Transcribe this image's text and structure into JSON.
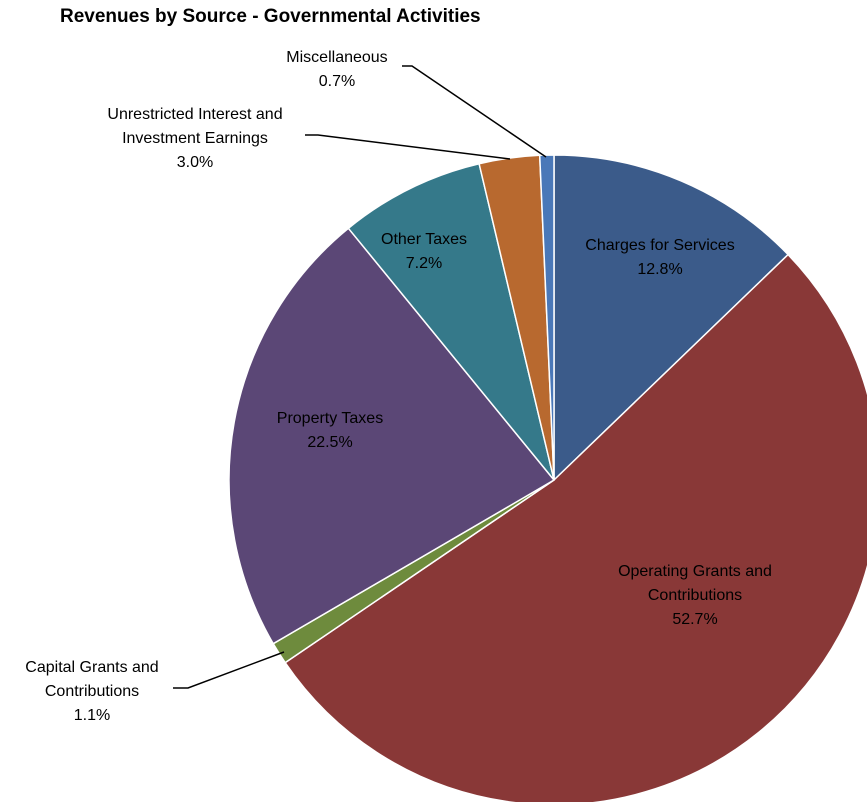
{
  "chart_data": {
    "type": "pie",
    "title": "Revenues by Source - Governmental Activities",
    "slices": [
      {
        "label_lines": [
          "Charges for Services"
        ],
        "value_label": "12.8%",
        "value": 12.8,
        "color": "#3b5b8a"
      },
      {
        "label_lines": [
          "Operating Grants and",
          "Contributions"
        ],
        "value_label": "52.7%",
        "value": 52.7,
        "color": "#893837"
      },
      {
        "label_lines": [
          "Capital Grants and",
          "Contributions"
        ],
        "value_label": "1.1%",
        "value": 1.1,
        "color": "#6e8b3d"
      },
      {
        "label_lines": [
          "Property Taxes"
        ],
        "value_label": "22.5%",
        "value": 22.5,
        "color": "#5b4776"
      },
      {
        "label_lines": [
          "Other Taxes"
        ],
        "value_label": "7.2%",
        "value": 7.2,
        "color": "#35798a"
      },
      {
        "label_lines": [
          "Unrestricted Interest and",
          "Investment Earnings"
        ],
        "value_label": "3.0%",
        "value": 3.0,
        "color": "#b8692f"
      },
      {
        "label_lines": [
          "Miscellaneous"
        ],
        "value_label": "0.7%",
        "value": 0.7,
        "color": "#4a78b8"
      }
    ]
  }
}
